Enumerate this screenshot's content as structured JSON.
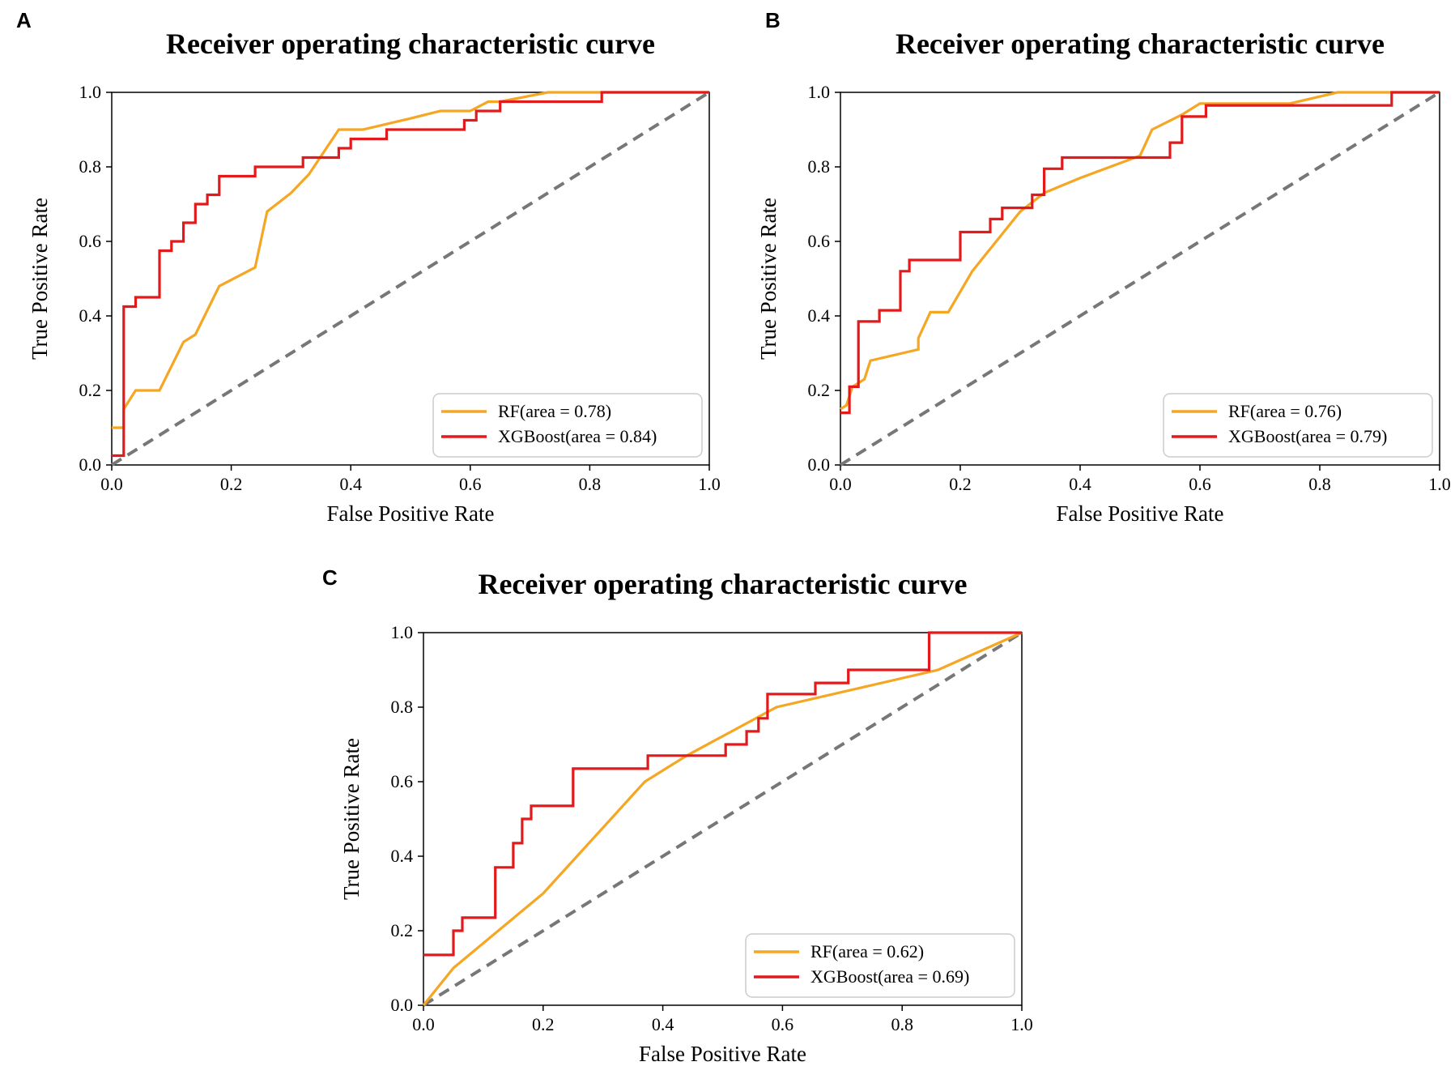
{
  "chart_data": [
    {
      "panel": "A",
      "type": "line",
      "title": "Receiver operating characteristic curve",
      "xlabel": "False Positive Rate",
      "ylabel": "True Positive Rate",
      "xlim": [
        0.0,
        1.0
      ],
      "ylim": [
        0.0,
        1.0
      ],
      "xticks": [
        "0.0",
        "0.2",
        "0.4",
        "0.6",
        "0.8",
        "1.0"
      ],
      "yticks": [
        "0.0",
        "0.2",
        "0.4",
        "0.6",
        "0.8",
        "1.0"
      ],
      "legend_position": "lower-right",
      "series": [
        {
          "name": "RF(area = 0.78)",
          "color": "#f5a623",
          "points": [
            [
              0,
              0.1
            ],
            [
              0.02,
              0.1
            ],
            [
              0.02,
              0.15
            ],
            [
              0.04,
              0.2
            ],
            [
              0.08,
              0.2
            ],
            [
              0.12,
              0.33
            ],
            [
              0.14,
              0.35
            ],
            [
              0.18,
              0.48
            ],
            [
              0.24,
              0.53
            ],
            [
              0.26,
              0.68
            ],
            [
              0.3,
              0.73
            ],
            [
              0.33,
              0.78
            ],
            [
              0.38,
              0.9
            ],
            [
              0.42,
              0.9
            ],
            [
              0.5,
              0.93
            ],
            [
              0.55,
              0.95
            ],
            [
              0.6,
              0.95
            ],
            [
              0.63,
              0.975
            ],
            [
              0.65,
              0.975
            ],
            [
              0.73,
              1.0
            ],
            [
              1.0,
              1.0
            ]
          ]
        },
        {
          "name": "XGBoost(area = 0.84)",
          "color": "#e31a1c",
          "points": [
            [
              0,
              0.025
            ],
            [
              0.02,
              0.025
            ],
            [
              0.02,
              0.425
            ],
            [
              0.04,
              0.425
            ],
            [
              0.04,
              0.45
            ],
            [
              0.08,
              0.45
            ],
            [
              0.08,
              0.575
            ],
            [
              0.1,
              0.575
            ],
            [
              0.1,
              0.6
            ],
            [
              0.12,
              0.6
            ],
            [
              0.12,
              0.65
            ],
            [
              0.14,
              0.65
            ],
            [
              0.14,
              0.7
            ],
            [
              0.16,
              0.7
            ],
            [
              0.16,
              0.725
            ],
            [
              0.18,
              0.725
            ],
            [
              0.18,
              0.775
            ],
            [
              0.24,
              0.775
            ],
            [
              0.24,
              0.8
            ],
            [
              0.32,
              0.8
            ],
            [
              0.32,
              0.825
            ],
            [
              0.38,
              0.825
            ],
            [
              0.38,
              0.85
            ],
            [
              0.4,
              0.85
            ],
            [
              0.4,
              0.875
            ],
            [
              0.46,
              0.875
            ],
            [
              0.46,
              0.9
            ],
            [
              0.59,
              0.9
            ],
            [
              0.59,
              0.925
            ],
            [
              0.61,
              0.925
            ],
            [
              0.61,
              0.95
            ],
            [
              0.65,
              0.95
            ],
            [
              0.65,
              0.975
            ],
            [
              0.82,
              0.975
            ],
            [
              0.82,
              1.0
            ],
            [
              1.0,
              1.0
            ]
          ]
        }
      ],
      "reference_line": [
        [
          0,
          0
        ],
        [
          1,
          1
        ]
      ]
    },
    {
      "panel": "B",
      "type": "line",
      "title": "Receiver operating characteristic curve",
      "xlabel": "False Positive Rate",
      "ylabel": "True Positive Rate",
      "xlim": [
        0.0,
        1.0
      ],
      "ylim": [
        0.0,
        1.0
      ],
      "xticks": [
        "0.0",
        "0.2",
        "0.4",
        "0.6",
        "0.8",
        "1.0"
      ],
      "yticks": [
        "0.0",
        "0.2",
        "0.4",
        "0.6",
        "0.8",
        "1.0"
      ],
      "legend_position": "lower-right",
      "series": [
        {
          "name": "RF(area = 0.76)",
          "color": "#f5a623",
          "points": [
            [
              0,
              0.15
            ],
            [
              0.01,
              0.16
            ],
            [
              0.02,
              0.21
            ],
            [
              0.04,
              0.23
            ],
            [
              0.05,
              0.28
            ],
            [
              0.13,
              0.31
            ],
            [
              0.13,
              0.34
            ],
            [
              0.15,
              0.41
            ],
            [
              0.18,
              0.41
            ],
            [
              0.22,
              0.52
            ],
            [
              0.26,
              0.6
            ],
            [
              0.3,
              0.68
            ],
            [
              0.34,
              0.73
            ],
            [
              0.4,
              0.77
            ],
            [
              0.5,
              0.83
            ],
            [
              0.52,
              0.9
            ],
            [
              0.57,
              0.94
            ],
            [
              0.6,
              0.97
            ],
            [
              0.75,
              0.97
            ],
            [
              0.83,
              1.0
            ],
            [
              1.0,
              1.0
            ]
          ]
        },
        {
          "name": "XGBoost(area = 0.79)",
          "color": "#e31a1c",
          "points": [
            [
              0,
              0.14
            ],
            [
              0.015,
              0.14
            ],
            [
              0.015,
              0.21
            ],
            [
              0.03,
              0.21
            ],
            [
              0.03,
              0.385
            ],
            [
              0.065,
              0.385
            ],
            [
              0.065,
              0.415
            ],
            [
              0.1,
              0.415
            ],
            [
              0.1,
              0.52
            ],
            [
              0.115,
              0.52
            ],
            [
              0.115,
              0.55
            ],
            [
              0.2,
              0.55
            ],
            [
              0.2,
              0.625
            ],
            [
              0.25,
              0.625
            ],
            [
              0.25,
              0.66
            ],
            [
              0.27,
              0.66
            ],
            [
              0.27,
              0.69
            ],
            [
              0.32,
              0.69
            ],
            [
              0.32,
              0.725
            ],
            [
              0.34,
              0.725
            ],
            [
              0.34,
              0.795
            ],
            [
              0.37,
              0.795
            ],
            [
              0.37,
              0.825
            ],
            [
              0.55,
              0.825
            ],
            [
              0.55,
              0.865
            ],
            [
              0.57,
              0.865
            ],
            [
              0.57,
              0.935
            ],
            [
              0.61,
              0.935
            ],
            [
              0.61,
              0.965
            ],
            [
              0.92,
              0.965
            ],
            [
              0.92,
              1.0
            ],
            [
              1.0,
              1.0
            ]
          ]
        }
      ],
      "reference_line": [
        [
          0,
          0
        ],
        [
          1,
          1
        ]
      ]
    },
    {
      "panel": "C",
      "type": "line",
      "title": "Receiver operating characteristic curve",
      "xlabel": "False Positive Rate",
      "ylabel": "True Positive Rate",
      "xlim": [
        0.0,
        1.0
      ],
      "ylim": [
        0.0,
        1.0
      ],
      "xticks": [
        "0.0",
        "0.2",
        "0.4",
        "0.6",
        "0.8",
        "1.0"
      ],
      "yticks": [
        "0.0",
        "0.2",
        "0.4",
        "0.6",
        "0.8",
        "1.0"
      ],
      "legend_position": "lower-right",
      "series": [
        {
          "name": "RF(area = 0.62)",
          "color": "#f5a623",
          "points": [
            [
              0,
              0
            ],
            [
              0.05,
              0.1
            ],
            [
              0.2,
              0.3
            ],
            [
              0.37,
              0.6
            ],
            [
              0.44,
              0.67
            ],
            [
              0.59,
              0.8
            ],
            [
              0.86,
              0.9
            ],
            [
              1.0,
              1.0
            ]
          ]
        },
        {
          "name": "XGBoost(area = 0.69)",
          "color": "#e31a1c",
          "points": [
            [
              0,
              0.135
            ],
            [
              0.05,
              0.135
            ],
            [
              0.05,
              0.2
            ],
            [
              0.065,
              0.2
            ],
            [
              0.065,
              0.235
            ],
            [
              0.12,
              0.235
            ],
            [
              0.12,
              0.37
            ],
            [
              0.15,
              0.37
            ],
            [
              0.15,
              0.435
            ],
            [
              0.165,
              0.435
            ],
            [
              0.165,
              0.5
            ],
            [
              0.18,
              0.5
            ],
            [
              0.18,
              0.535
            ],
            [
              0.25,
              0.535
            ],
            [
              0.25,
              0.635
            ],
            [
              0.375,
              0.635
            ],
            [
              0.375,
              0.67
            ],
            [
              0.505,
              0.67
            ],
            [
              0.505,
              0.7
            ],
            [
              0.54,
              0.7
            ],
            [
              0.54,
              0.735
            ],
            [
              0.56,
              0.735
            ],
            [
              0.56,
              0.77
            ],
            [
              0.575,
              0.77
            ],
            [
              0.575,
              0.835
            ],
            [
              0.655,
              0.835
            ],
            [
              0.655,
              0.865
            ],
            [
              0.71,
              0.865
            ],
            [
              0.71,
              0.9
            ],
            [
              0.845,
              0.9
            ],
            [
              0.845,
              1.0
            ],
            [
              1.0,
              1.0
            ]
          ]
        }
      ],
      "reference_line": [
        [
          0,
          0
        ],
        [
          1,
          1
        ]
      ]
    }
  ],
  "colors": {
    "reference_line": "#777777",
    "axes": "#000000",
    "legend_border": "#cccccc"
  }
}
